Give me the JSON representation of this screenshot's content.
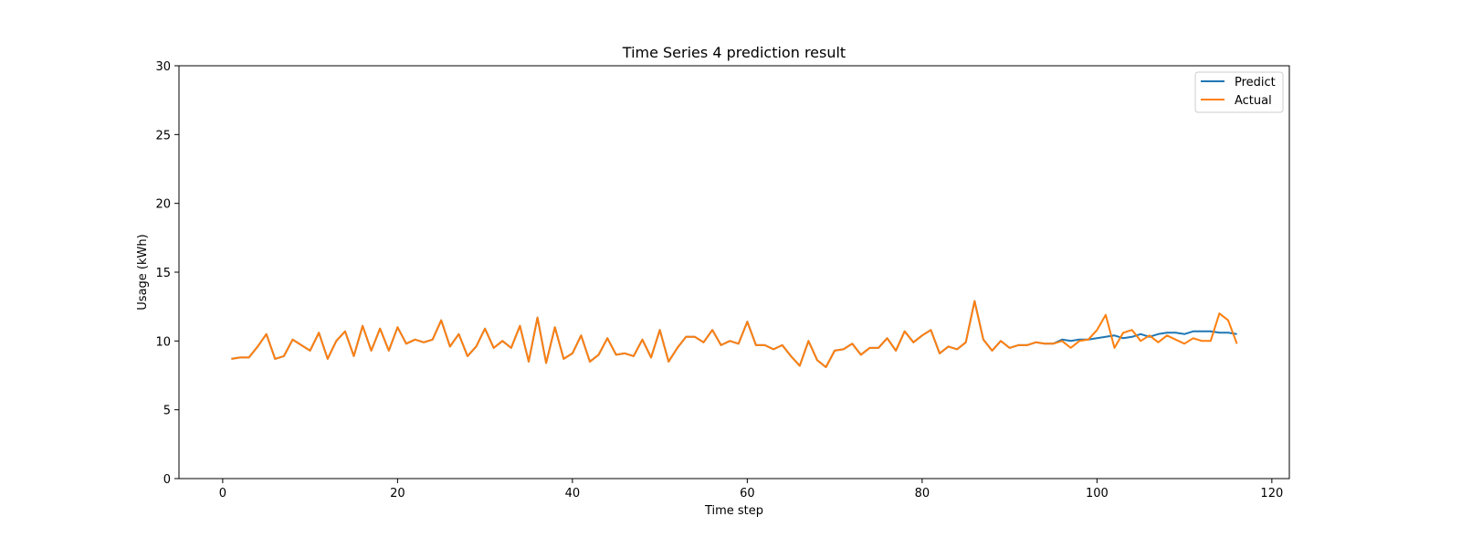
{
  "chart_data": {
    "type": "line",
    "title": "Time Series 4 prediction result",
    "xlabel": "Time step",
    "ylabel": "Usage (kWh)",
    "xlim": [
      -5,
      122
    ],
    "ylim": [
      0,
      30
    ],
    "xticks": [
      0,
      20,
      40,
      60,
      80,
      100,
      120
    ],
    "yticks": [
      0,
      5,
      10,
      15,
      20,
      25,
      30
    ],
    "grid": false,
    "legend_position": "top-right",
    "x_start": 1,
    "series": [
      {
        "name": "Predict",
        "color": "#1f77b4",
        "values": [
          8.7,
          8.8,
          8.8,
          9.6,
          10.5,
          8.7,
          8.9,
          10.1,
          9.7,
          9.3,
          10.6,
          8.7,
          10.0,
          10.7,
          8.9,
          11.1,
          9.3,
          10.9,
          9.3,
          11.0,
          9.8,
          10.1,
          9.9,
          10.1,
          11.5,
          9.6,
          10.5,
          8.9,
          9.6,
          10.9,
          9.5,
          10.0,
          9.5,
          11.1,
          8.5,
          11.7,
          8.4,
          11.0,
          8.7,
          9.1,
          10.4,
          8.5,
          9.0,
          10.2,
          9.0,
          9.1,
          8.9,
          10.1,
          8.8,
          10.8,
          8.5,
          9.5,
          10.3,
          10.3,
          9.9,
          10.8,
          9.7,
          10.0,
          9.8,
          11.4,
          9.7,
          9.7,
          9.4,
          9.7,
          8.9,
          8.2,
          10.0,
          8.6,
          8.1,
          9.3,
          9.4,
          9.8,
          9.0,
          9.5,
          9.5,
          10.2,
          9.3,
          10.7,
          9.9,
          10.4,
          10.8,
          9.1,
          9.6,
          9.4,
          9.9,
          12.9,
          10.1,
          9.3,
          10.0,
          9.5,
          9.7,
          9.7,
          9.9,
          9.8,
          9.8,
          10.1,
          10.0,
          10.1,
          10.1,
          10.2,
          10.3,
          10.4,
          10.2,
          10.3,
          10.5,
          10.3,
          10.5,
          10.6,
          10.6,
          10.5,
          10.7,
          10.7,
          10.7,
          10.6,
          10.6,
          10.5
        ]
      },
      {
        "name": "Actual",
        "color": "#ff7f0e",
        "values": [
          8.7,
          8.8,
          8.8,
          9.6,
          10.5,
          8.7,
          8.9,
          10.1,
          9.7,
          9.3,
          10.6,
          8.7,
          10.0,
          10.7,
          8.9,
          11.1,
          9.3,
          10.9,
          9.3,
          11.0,
          9.8,
          10.1,
          9.9,
          10.1,
          11.5,
          9.6,
          10.5,
          8.9,
          9.6,
          10.9,
          9.5,
          10.0,
          9.5,
          11.1,
          8.5,
          11.7,
          8.4,
          11.0,
          8.7,
          9.1,
          10.4,
          8.5,
          9.0,
          10.2,
          9.0,
          9.1,
          8.9,
          10.1,
          8.8,
          10.8,
          8.5,
          9.5,
          10.3,
          10.3,
          9.9,
          10.8,
          9.7,
          10.0,
          9.8,
          11.4,
          9.7,
          9.7,
          9.4,
          9.7,
          8.9,
          8.2,
          10.0,
          8.6,
          8.1,
          9.3,
          9.4,
          9.8,
          9.0,
          9.5,
          9.5,
          10.2,
          9.3,
          10.7,
          9.9,
          10.4,
          10.8,
          9.1,
          9.6,
          9.4,
          9.9,
          12.9,
          10.1,
          9.3,
          10.0,
          9.5,
          9.7,
          9.7,
          9.9,
          9.8,
          9.8,
          10.0,
          9.5,
          10.0,
          10.1,
          10.8,
          11.9,
          9.5,
          10.6,
          10.8,
          10.0,
          10.4,
          9.9,
          10.4,
          10.1,
          9.8,
          10.2,
          10.0,
          10.0,
          12.0,
          11.5,
          9.8
        ]
      }
    ]
  }
}
